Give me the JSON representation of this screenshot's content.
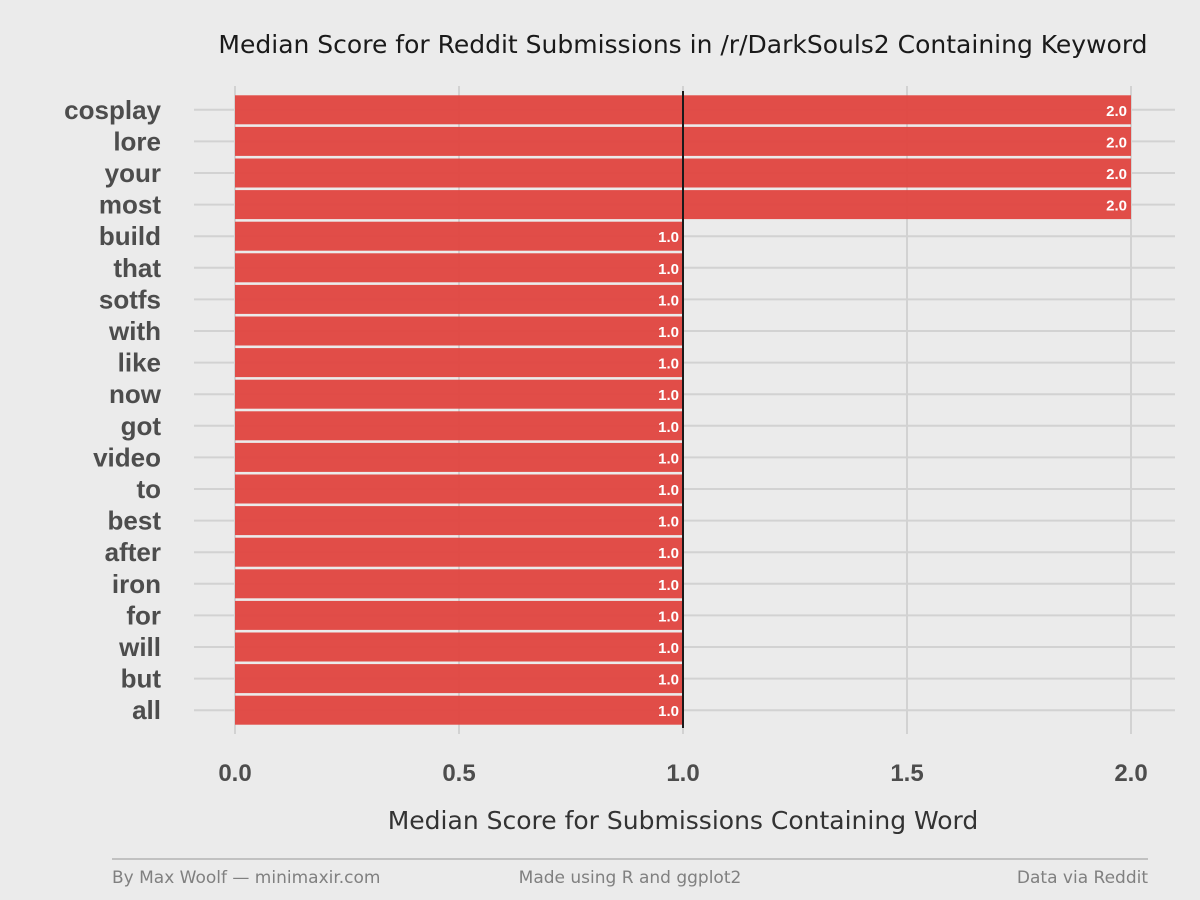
{
  "chart_data": {
    "type": "bar",
    "orientation": "horizontal",
    "title": "Median Score for Reddit Submissions in /r/DarkSouls2 Containing Keyword",
    "xlabel": "Median Score for Submissions Containing Word",
    "ylabel": "",
    "categories": [
      "cosplay",
      "lore",
      "your",
      "most",
      "build",
      "that",
      "sotfs",
      "with",
      "like",
      "now",
      "got",
      "video",
      "to",
      "best",
      "after",
      "iron",
      "for",
      "will",
      "but",
      "all"
    ],
    "values": [
      2.0,
      2.0,
      2.0,
      2.0,
      1.0,
      1.0,
      1.0,
      1.0,
      1.0,
      1.0,
      1.0,
      1.0,
      1.0,
      1.0,
      1.0,
      1.0,
      1.0,
      1.0,
      1.0,
      1.0
    ],
    "data_labels": [
      "2.0",
      "2.0",
      "2.0",
      "2.0",
      "1.0",
      "1.0",
      "1.0",
      "1.0",
      "1.0",
      "1.0",
      "1.0",
      "1.0",
      "1.0",
      "1.0",
      "1.0",
      "1.0",
      "1.0",
      "1.0",
      "1.0",
      "1.0"
    ],
    "xlim": [
      0,
      2.0
    ],
    "xticks": [
      0.0,
      0.5,
      1.0,
      1.5,
      2.0
    ],
    "xtick_labels": [
      "0.0",
      "0.5",
      "1.0",
      "1.5",
      "2.0"
    ],
    "reference_line_x": 1.0,
    "grid": true,
    "legend": "none",
    "colors": {
      "bar": "#e0443f",
      "background": "#ebebeb",
      "reference_line": "#1a1a1a"
    }
  },
  "footer": {
    "left": "By Max Woolf — minimaxir.com",
    "center": "Made using R and ggplot2",
    "right": "Data via Reddit"
  }
}
